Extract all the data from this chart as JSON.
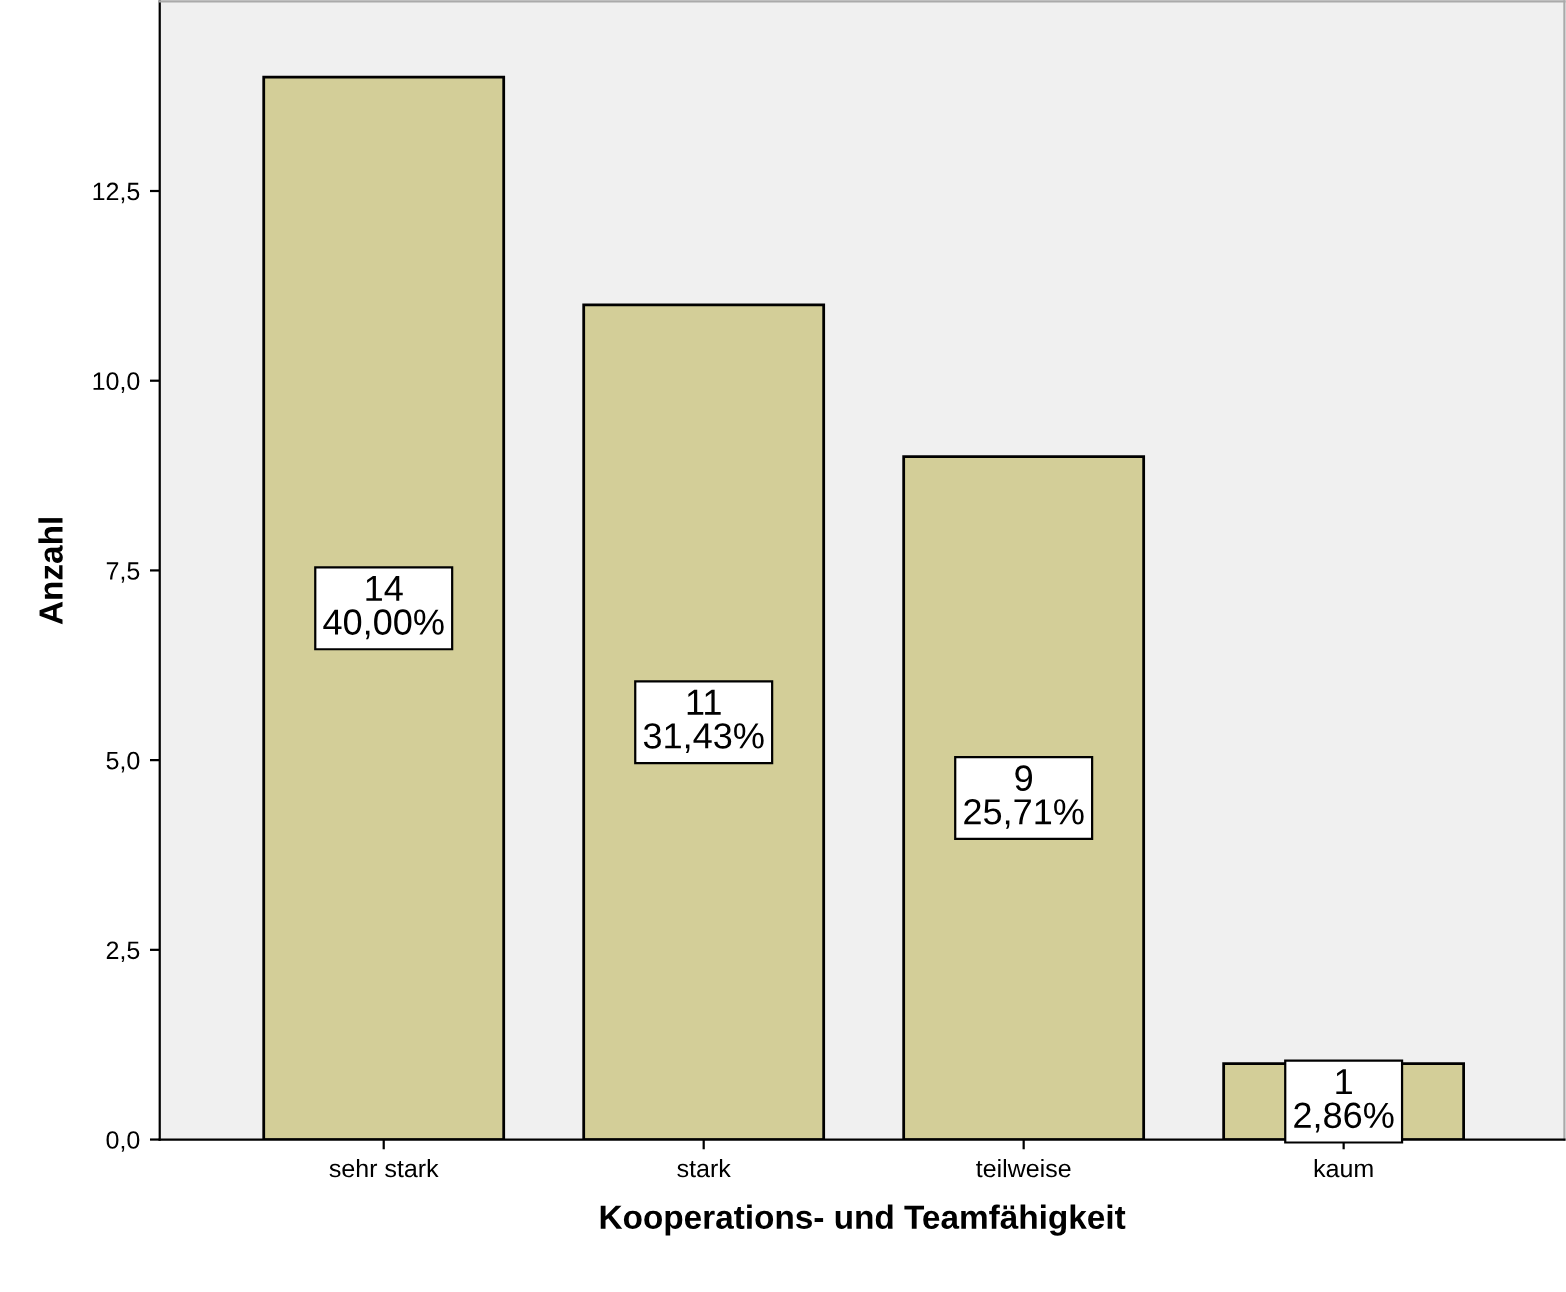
{
  "chart_data": {
    "type": "bar",
    "xlabel": "Kooperations- und Teamfähigkeit",
    "ylabel": "Anzahl",
    "categories": [
      "sehr stark",
      "stark",
      "teilweise",
      "kaum"
    ],
    "values": [
      14,
      11,
      9,
      1
    ],
    "color": "#d3ce98",
    "value_labels": [
      "14\n40,00%",
      "11\n31,43%",
      "9\n25,71%",
      "1\n2,86%"
    ],
    "ylim": [
      0,
      15
    ],
    "yticks": [
      {
        "value": 0,
        "label": "0,0"
      },
      {
        "value": 2.5,
        "label": "2,5"
      },
      {
        "value": 5,
        "label": "5,0"
      },
      {
        "value": 7.5,
        "label": "7,5"
      },
      {
        "value": 10,
        "label": "10,0"
      },
      {
        "value": 12.5,
        "label": "12,5"
      }
    ],
    "grid": false,
    "legend": false
  }
}
